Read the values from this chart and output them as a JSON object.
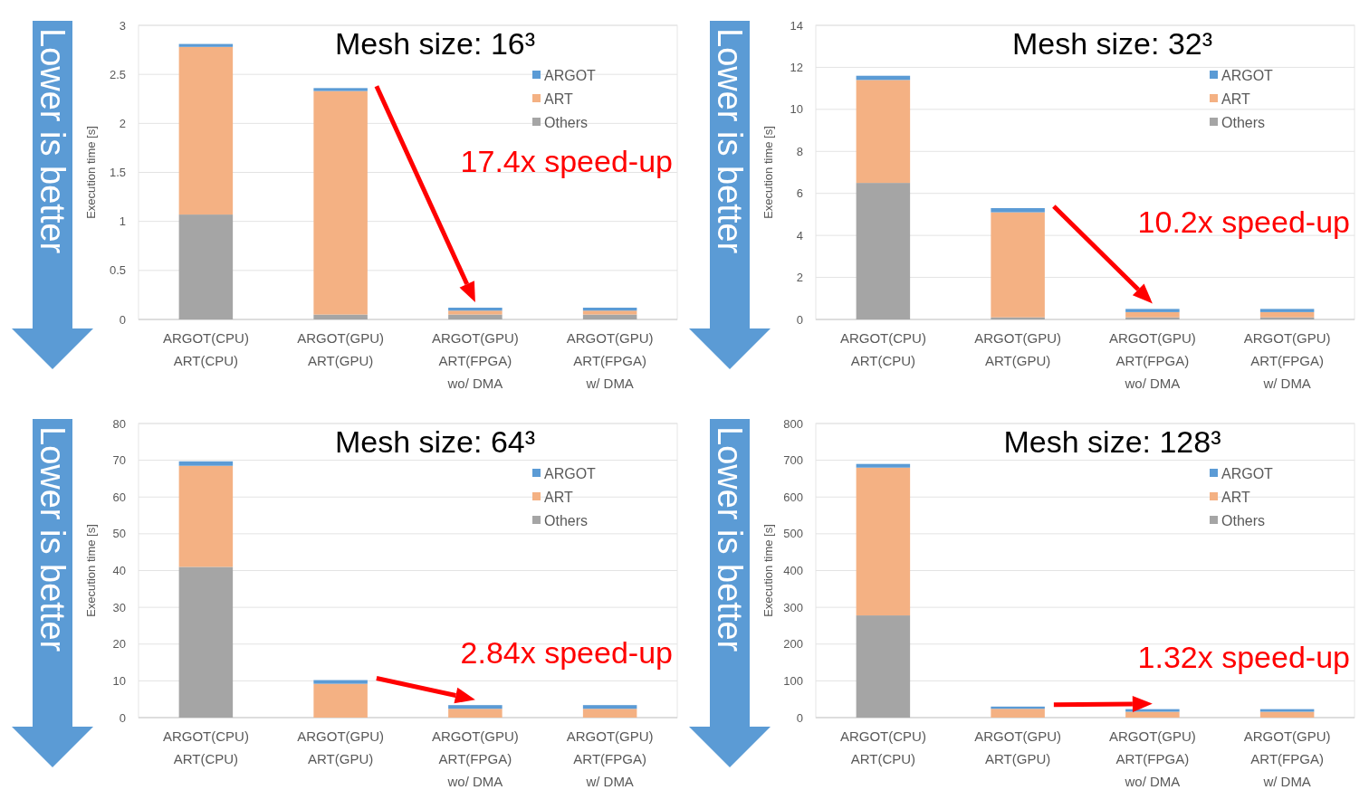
{
  "chart_data": [
    {
      "type": "bar",
      "stacked": true,
      "title": "Mesh size: 16³",
      "ylabel": "Execution time [s]",
      "categories": [
        "ARGOT(CPU)\nART(CPU)",
        "ARGOT(GPU)\nART(GPU)",
        "ARGOT(GPU)\nART(FPGA)\nwo/ DMA",
        "ARGOT(GPU)\nART(FPGA)\nw/ DMA"
      ],
      "series": [
        {
          "name": "Others",
          "color": "#a5a5a5",
          "values": [
            1.07,
            0.05,
            0.05,
            0.05
          ]
        },
        {
          "name": "ART",
          "color": "#f4b183",
          "values": [
            1.71,
            2.28,
            0.04,
            0.04
          ]
        },
        {
          "name": "ARGOT",
          "color": "#5b9bd5",
          "values": [
            0.03,
            0.03,
            0.03,
            0.03
          ]
        }
      ],
      "ylim": [
        0,
        3
      ],
      "yticks": [
        0,
        0.5,
        1,
        1.5,
        2,
        2.5,
        3
      ],
      "grid": "y",
      "legend": "top right",
      "annotations": [
        "Lower is better",
        "17.4x speed-up"
      ]
    },
    {
      "type": "bar",
      "stacked": true,
      "title": "Mesh size: 32³",
      "ylabel": "Execution time [s]",
      "categories": [
        "ARGOT(CPU)\nART(CPU)",
        "ARGOT(GPU)\nART(GPU)",
        "ARGOT(GPU)\nART(FPGA)\nwo/ DMA",
        "ARGOT(GPU)\nART(FPGA)\nw/ DMA"
      ],
      "series": [
        {
          "name": "Others",
          "color": "#a5a5a5",
          "values": [
            6.5,
            0.1,
            0.1,
            0.1
          ]
        },
        {
          "name": "ART",
          "color": "#f4b183",
          "values": [
            4.9,
            5.0,
            0.25,
            0.25
          ]
        },
        {
          "name": "ARGOT",
          "color": "#5b9bd5",
          "values": [
            0.2,
            0.2,
            0.15,
            0.15
          ]
        }
      ],
      "ylim": [
        0,
        14
      ],
      "yticks": [
        0,
        2,
        4,
        6,
        8,
        10,
        12,
        14
      ],
      "grid": "y",
      "legend": "top right",
      "annotations": [
        "Lower is better",
        "10.2x speed-up"
      ]
    },
    {
      "type": "bar",
      "stacked": true,
      "title": "Mesh size: 64³",
      "ylabel": "Execution time [s]",
      "categories": [
        "ARGOT(CPU)\nART(CPU)",
        "ARGOT(GPU)\nART(GPU)",
        "ARGOT(GPU)\nART(FPGA)\nwo/ DMA",
        "ARGOT(GPU)\nART(FPGA)\nw/ DMA"
      ],
      "series": [
        {
          "name": "Others",
          "color": "#a5a5a5",
          "values": [
            41,
            null,
            null,
            null
          ]
        },
        {
          "name": "ART",
          "color": "#f4b183",
          "values": [
            27.5,
            9.2,
            2.4,
            2.4
          ]
        },
        {
          "name": "ARGOT",
          "color": "#5b9bd5",
          "values": [
            1.2,
            1.0,
            1.0,
            1.0
          ]
        }
      ],
      "ylim": [
        0,
        80
      ],
      "yticks": [
        0,
        10,
        20,
        30,
        40,
        50,
        60,
        70,
        80
      ],
      "grid": "y",
      "legend": "top right",
      "annotations": [
        "Lower is better",
        "2.84x speed-up"
      ]
    },
    {
      "type": "bar",
      "stacked": true,
      "title": "Mesh size: 128³",
      "ylabel": "Execution time [s]",
      "categories": [
        "ARGOT(CPU)\nART(CPU)",
        "ARGOT(GPU)\nART(GPU)",
        "ARGOT(GPU)\nART(FPGA)\nwo/ DMA",
        "ARGOT(GPU)\nART(FPGA)\nw/ DMA"
      ],
      "series": [
        {
          "name": "Others",
          "color": "#a5a5a5",
          "values": [
            278,
            null,
            null,
            null
          ]
        },
        {
          "name": "ART",
          "color": "#f4b183",
          "values": [
            402,
            24,
            16,
            16
          ]
        },
        {
          "name": "ARGOT",
          "color": "#5b9bd5",
          "values": [
            10,
            6,
            7,
            7
          ]
        }
      ],
      "ylim": [
        0,
        800
      ],
      "yticks": [
        0,
        100,
        200,
        300,
        400,
        500,
        600,
        700,
        800
      ],
      "grid": "y",
      "legend": "top right",
      "annotations": [
        "Lower is better",
        "1.32x speed-up"
      ]
    }
  ]
}
